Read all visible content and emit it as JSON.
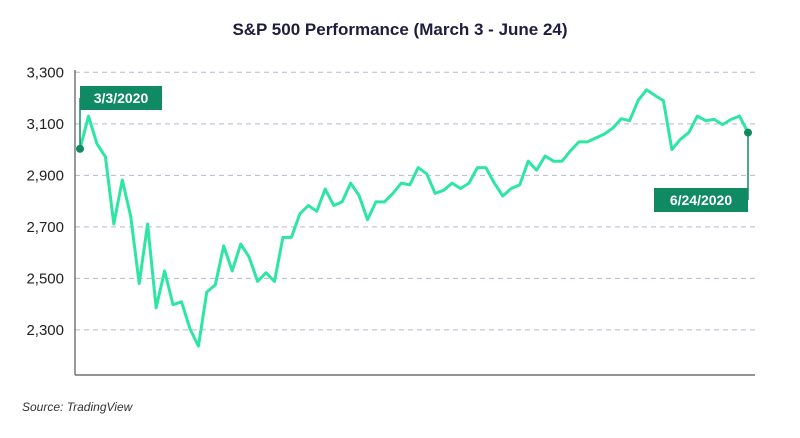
{
  "chart_data": {
    "type": "line",
    "title": "S&P 500 Performance (March 3 - June 24)",
    "xlabel": "",
    "ylabel": "",
    "ylim": [
      2125,
      3340
    ],
    "yticks": [
      2300,
      2500,
      2700,
      2900,
      3100,
      3300
    ],
    "ytick_labels": [
      "2,300",
      "2,500",
      "2,700",
      "2,900",
      "3,100",
      "3,300"
    ],
    "grid": true,
    "series": [
      {
        "name": "S&P 500",
        "color": "#2ee6a3",
        "values": [
          3003,
          3130,
          3023,
          2972,
          2711,
          2882,
          2741,
          2480,
          2711,
          2386,
          2529,
          2398,
          2409,
          2305,
          2237,
          2447,
          2475,
          2626,
          2529,
          2633,
          2583,
          2488,
          2522,
          2488,
          2659,
          2659,
          2750,
          2783,
          2761,
          2847,
          2783,
          2797,
          2870,
          2822,
          2728,
          2797,
          2797,
          2830,
          2870,
          2863,
          2930,
          2906,
          2830,
          2842,
          2870,
          2849,
          2870,
          2930,
          2930,
          2870,
          2820,
          2849,
          2863,
          2955,
          2920,
          2975,
          2955,
          2955,
          2995,
          3030,
          3030,
          3045,
          3060,
          3083,
          3120,
          3112,
          3190,
          3232,
          3210,
          3190,
          3000,
          3040,
          3066,
          3130,
          3112,
          3117,
          3097,
          3117,
          3130,
          3066
        ]
      }
    ],
    "annotations": {
      "start": {
        "label": "3/3/2020",
        "value": 3003
      },
      "end": {
        "label": "6/24/2020",
        "value": 3066
      }
    }
  },
  "source_label": "Source: TradingView"
}
